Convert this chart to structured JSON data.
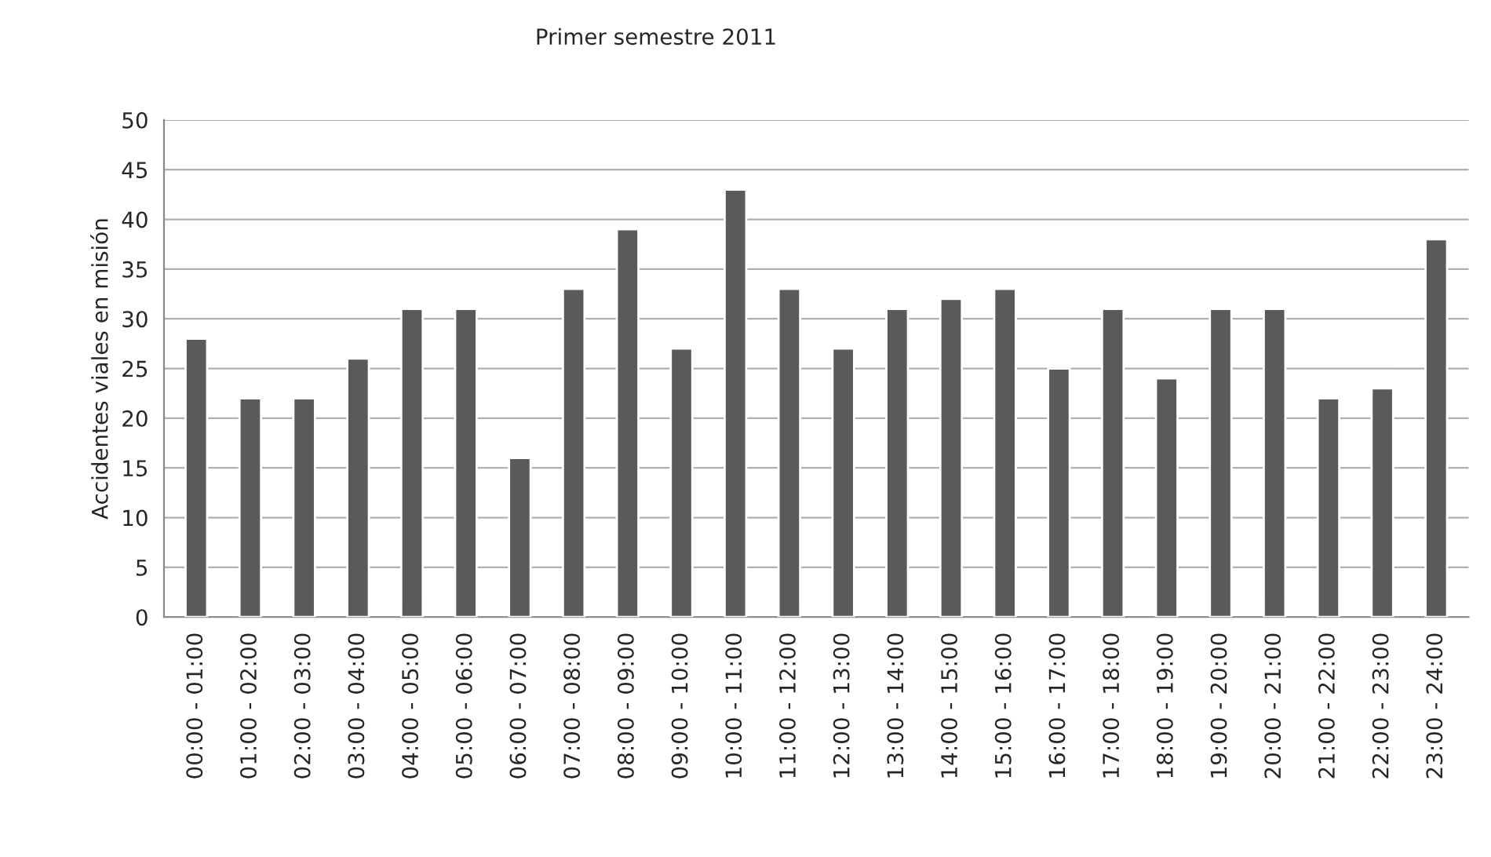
{
  "chart_data": {
    "type": "bar",
    "title": "Primer semestre 2011",
    "ylabel": "Accidentes viales en misión",
    "categories": [
      "00:00 - 01:00",
      "01:00 - 02:00",
      "02:00 - 03:00",
      "03:00 - 04:00",
      "04:00 - 05:00",
      "05:00 - 06:00",
      "06:00 - 07:00",
      "07:00 - 08:00",
      "08:00 - 09:00",
      "09:00 - 10:00",
      "10:00 - 11:00",
      "11:00 - 12:00",
      "12:00 - 13:00",
      "13:00 - 14:00",
      "14:00 - 15:00",
      "15:00 - 16:00",
      "16:00 - 17:00",
      "17:00 - 18:00",
      "18:00 - 19:00",
      "19:00 - 20:00",
      "20:00 - 21:00",
      "21:00 - 22:00",
      "22:00 - 23:00",
      "23:00 - 24:00"
    ],
    "values": [
      28,
      22,
      22,
      26,
      31,
      31,
      16,
      33,
      39,
      27,
      43,
      33,
      27,
      31,
      32,
      33,
      25,
      31,
      24,
      31,
      31,
      22,
      23,
      38
    ],
    "color": "#5a5a5a",
    "ylim": [
      0,
      50
    ],
    "yticks": [
      0,
      5,
      10,
      15,
      20,
      25,
      30,
      35,
      40,
      45,
      50
    ],
    "grid": "y"
  }
}
